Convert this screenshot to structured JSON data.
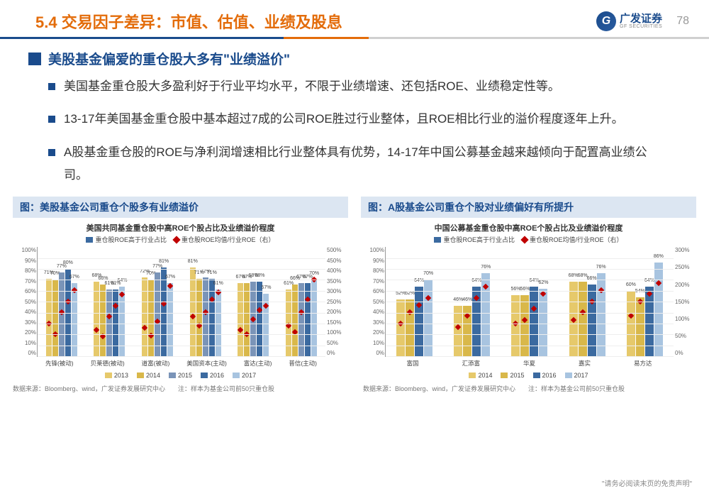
{
  "header": {
    "title": "5.4  交易因子差异：市值、估值、业绩及股息",
    "logo_cn": "广发证券",
    "logo_en": "GF SECURITIES",
    "logo_g": "G",
    "page": "78"
  },
  "subtitle": "美股基金偏爱的重仓股大多有\"业绩溢价\"",
  "bullets": [
    "美国基金重仓股大多盈利好于行业平均水平，不限于业绩增速、还包括ROE、业绩稳定性等。",
    "13-17年美国基金重仓股中基本超过7成的公司ROE胜过行业整体，且ROE相比行业的溢价程度逐年上升。",
    "A股基金重仓股的ROE与净利润增速相比行业整体具有优势，14-17年中国公募基金越来越倾向于配置高业绩公司。"
  ],
  "chart_left": {
    "header": "图：美股基金公司重仓个股多有业绩溢价",
    "title": "美国共同基金重仓股中高ROE个股占比及业绩溢价程度",
    "legend_bar": "重仓股ROE高于行业占比",
    "legend_line": "重仓股ROE均值/行业ROE（右）",
    "yl_ticks": [
      "100%",
      "90%",
      "80%",
      "70%",
      "60%",
      "50%",
      "40%",
      "30%",
      "20%",
      "10%",
      "0%"
    ],
    "yr_ticks": [
      "500%",
      "450%",
      "400%",
      "350%",
      "300%",
      "250%",
      "200%",
      "150%",
      "100%",
      "50%",
      "0%"
    ],
    "categories": [
      "先锋(被动)",
      "贝莱德(被动)",
      "道富(被动)",
      "美国资本(主动)",
      "富达(主动)",
      "普信(主动)"
    ],
    "series": {
      "2013": [
        71,
        68,
        72,
        81,
        67,
        61
      ],
      "2014": [
        70,
        66,
        70,
        71,
        67,
        66
      ],
      "2015": [
        77,
        61,
        77,
        72,
        68,
        67
      ],
      "2016": [
        80,
        61,
        81,
        71,
        68,
        67
      ],
      "2017": [
        67,
        64,
        67,
        61,
        57,
        70
      ]
    },
    "line_r": [
      [
        150,
        100,
        200,
        250,
        300
      ],
      [
        120,
        90,
        180,
        230,
        280
      ],
      [
        130,
        95,
        160,
        240,
        320
      ],
      [
        180,
        140,
        200,
        260,
        290
      ],
      [
        120,
        100,
        170,
        210,
        230
      ],
      [
        140,
        110,
        200,
        260,
        350
      ]
    ],
    "year_colors": {
      "2013": "#e6c96b",
      "2014": "#d9b84a",
      "2015": "#7a94b8",
      "2016": "#3b6aa0",
      "2017": "#a8c4e0"
    }
  },
  "chart_right": {
    "header": "图：A股基金公司重仓个股对业绩偏好有所提升",
    "title": "中国公募基金重仓股中高ROE个股占比及业绩溢价程度",
    "legend_bar": "重仓股ROE高于行业占比",
    "legend_line": "重仓股ROE均值/行业ROE（右）",
    "yl_ticks": [
      "100%",
      "90%",
      "80%",
      "70%",
      "60%",
      "50%",
      "40%",
      "30%",
      "20%",
      "10%",
      "0%"
    ],
    "yr_ticks": [
      "300%",
      "250%",
      "200%",
      "150%",
      "100%",
      "50%",
      "0%"
    ],
    "categories": [
      "富国",
      "汇添富",
      "华夏",
      "嘉实",
      "易方达"
    ],
    "series": {
      "2014": [
        52,
        46,
        56,
        68,
        60
      ],
      "2015": [
        52,
        46,
        56,
        68,
        54
      ],
      "2016": [
        64,
        64,
        64,
        66,
        64
      ],
      "2017": [
        70,
        76,
        62,
        76,
        86
      ]
    },
    "series_76b": [
      null,
      null,
      null,
      76,
      null
    ],
    "line_r": [
      [
        90,
        120,
        140,
        160
      ],
      [
        80,
        110,
        160,
        190
      ],
      [
        90,
        100,
        130,
        170
      ],
      [
        100,
        120,
        150,
        180
      ],
      [
        110,
        150,
        170,
        200
      ]
    ],
    "year_colors": {
      "2014": "#e6c96b",
      "2015": "#d9b84a",
      "2016": "#3b6aa0",
      "2017": "#a8c4e0"
    }
  },
  "footnotes": {
    "left": "数据来源：Bloomberg、wind，广发证券发展研究中心　　注：样本为基金公司前50只重仓股",
    "right": "数据来源：Bloomberg、wind，广发证券发展研究中心　　注：样本为基金公司前50只重仓股"
  },
  "disclaimer": "\"请务必阅读末页的免责声明\""
}
